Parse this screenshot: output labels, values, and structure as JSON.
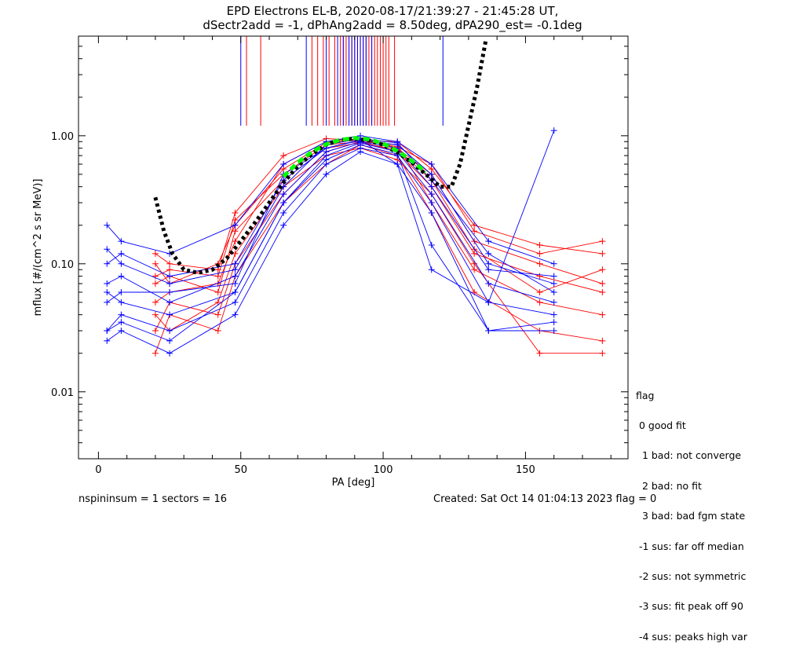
{
  "chart_data": {
    "type": "line",
    "title_line1": "EPD Electrons EL-B, 2020-08-17/21:39:27 - 21:45:28 UT,",
    "title_line2": "dSectr2add = -1, dPhAng2add = 8.50deg, dPA290_est=  -0.1deg",
    "xlabel": "PA [deg]",
    "ylabel": "mflux [#/(cm^2 s sr MeV)]",
    "xlim": [
      -7,
      186
    ],
    "ylim": [
      0.003,
      6.0
    ],
    "yscale": "log",
    "x_ticks": [
      0,
      50,
      100,
      150
    ],
    "x_tick_labels": [
      "0",
      "50",
      "100",
      "150"
    ],
    "y_ticks": [
      0.01,
      0.1,
      1.0
    ],
    "y_tick_labels": [
      "0.01",
      "0.10",
      "1.00"
    ],
    "series": [
      {
        "color": "#ff0000",
        "x": [
          20,
          25,
          42,
          48,
          65,
          80,
          92,
          105,
          117,
          132,
          155,
          177
        ],
        "y": [
          0.08,
          0.09,
          0.08,
          0.22,
          0.5,
          0.85,
          0.9,
          0.75,
          0.4,
          0.12,
          0.08,
          0.06
        ]
      },
      {
        "color": "#ff0000",
        "x": [
          20,
          25,
          42,
          48,
          65,
          80,
          92,
          105,
          117,
          132,
          155,
          177
        ],
        "y": [
          0.05,
          0.06,
          0.07,
          0.15,
          0.6,
          0.9,
          0.95,
          0.8,
          0.5,
          0.15,
          0.1,
          0.07
        ]
      },
      {
        "color": "#ff0000",
        "x": [
          20,
          25,
          42,
          48,
          65,
          80,
          92,
          105,
          117,
          132,
          155,
          177
        ],
        "y": [
          0.03,
          0.05,
          0.04,
          0.1,
          0.35,
          0.75,
          0.9,
          0.85,
          0.3,
          0.09,
          0.05,
          0.04
        ]
      },
      {
        "color": "#ff0000",
        "x": [
          20,
          25,
          42,
          48,
          65,
          80,
          92,
          105,
          117,
          132,
          155,
          177
        ],
        "y": [
          0.12,
          0.1,
          0.09,
          0.25,
          0.7,
          0.95,
          0.92,
          0.9,
          0.55,
          0.2,
          0.14,
          0.12
        ]
      },
      {
        "color": "#ff0000",
        "x": [
          20,
          25,
          42,
          48,
          65,
          80,
          92,
          105,
          117,
          132,
          155,
          177
        ],
        "y": [
          0.02,
          0.04,
          0.03,
          0.08,
          0.3,
          0.6,
          0.85,
          0.7,
          0.25,
          0.06,
          0.03,
          0.025
        ]
      },
      {
        "color": "#ff0000",
        "x": [
          20,
          25,
          42,
          48,
          65,
          80,
          92,
          105,
          117,
          132,
          155,
          177
        ],
        "y": [
          0.07,
          0.08,
          0.06,
          0.18,
          0.45,
          0.8,
          0.88,
          0.78,
          0.45,
          0.13,
          0.06,
          0.09
        ]
      },
      {
        "color": "#ff0000",
        "x": [
          20,
          25,
          42,
          48,
          65,
          80,
          92,
          105,
          117,
          132,
          155,
          177
        ],
        "y": [
          0.04,
          0.03,
          0.05,
          0.12,
          0.4,
          0.7,
          0.8,
          0.65,
          0.35,
          0.1,
          0.02,
          0.02
        ]
      },
      {
        "color": "#ff0000",
        "x": [
          20,
          25,
          42,
          48,
          65,
          80,
          92,
          105,
          117,
          132,
          155,
          177
        ],
        "y": [
          0.1,
          0.07,
          0.1,
          0.2,
          0.55,
          0.88,
          0.93,
          0.82,
          0.6,
          0.18,
          0.12,
          0.15
        ]
      },
      {
        "color": "#0000ff",
        "x": [
          3,
          8,
          25,
          48,
          65,
          80,
          92,
          105,
          117,
          137,
          160
        ],
        "y": [
          0.1,
          0.12,
          0.08,
          0.1,
          0.45,
          0.8,
          0.92,
          0.85,
          0.5,
          0.1,
          0.07
        ]
      },
      {
        "color": "#0000ff",
        "x": [
          3,
          8,
          25,
          48,
          65,
          80,
          92,
          105,
          117,
          137,
          160
        ],
        "y": [
          0.06,
          0.05,
          0.04,
          0.06,
          0.3,
          0.7,
          0.88,
          0.75,
          0.35,
          0.07,
          0.05
        ]
      },
      {
        "color": "#0000ff",
        "x": [
          3,
          8,
          25,
          48,
          65,
          80,
          92,
          105,
          117,
          137,
          160
        ],
        "y": [
          0.2,
          0.15,
          0.12,
          0.2,
          0.6,
          0.9,
          1.0,
          0.9,
          0.6,
          0.15,
          0.1
        ]
      },
      {
        "color": "#0000ff",
        "x": [
          3,
          8,
          25,
          48,
          65,
          80,
          92,
          105,
          117,
          137,
          160
        ],
        "y": [
          0.03,
          0.04,
          0.03,
          0.05,
          0.25,
          0.6,
          0.8,
          0.7,
          0.3,
          0.05,
          0.04
        ]
      },
      {
        "color": "#0000ff",
        "x": [
          3,
          8,
          25,
          48,
          65,
          80,
          92,
          105,
          117,
          137,
          160
        ],
        "y": [
          0.025,
          0.03,
          0.02,
          0.04,
          0.2,
          0.5,
          0.75,
          0.6,
          0.25,
          0.03,
          0.03
        ]
      },
      {
        "color": "#0000ff",
        "x": [
          3,
          8,
          25,
          48,
          65,
          80,
          92,
          105,
          117,
          137,
          160
        ],
        "y": [
          0.13,
          0.1,
          0.07,
          0.09,
          0.4,
          0.85,
          0.95,
          0.88,
          0.45,
          0.12,
          0.06
        ]
      },
      {
        "color": "#0000ff",
        "x": [
          3,
          8,
          25,
          48,
          65,
          80,
          92,
          105,
          117,
          137,
          160
        ],
        "y": [
          0.07,
          0.08,
          0.05,
          0.08,
          0.35,
          0.75,
          0.9,
          0.8,
          0.4,
          0.09,
          0.08
        ]
      },
      {
        "color": "#0000ff",
        "x": [
          3,
          8,
          25,
          48,
          65,
          80,
          92,
          105,
          117,
          137,
          160
        ],
        "y": [
          0.05,
          0.06,
          0.06,
          0.07,
          0.5,
          0.8,
          0.93,
          0.6,
          0.09,
          0.05,
          1.1
        ]
      },
      {
        "color": "#0000ff",
        "x": [
          3,
          8,
          25,
          48,
          65,
          80,
          92,
          105,
          117,
          137,
          160
        ],
        "y": [
          0.03,
          0.035,
          0.025,
          0.06,
          0.3,
          0.65,
          0.85,
          0.72,
          0.14,
          0.03,
          0.035
        ]
      }
    ],
    "fit_curves": [
      {
        "color": "#000000",
        "style": "dotted",
        "x": [
          20,
          23,
          26,
          30,
          35,
          40,
          45,
          50,
          55,
          60,
          65,
          70,
          75,
          80,
          85,
          90,
          95,
          100,
          105,
          110,
          115,
          120,
          124,
          127,
          130,
          133,
          136
        ],
        "y": [
          0.33,
          0.18,
          0.12,
          0.09,
          0.085,
          0.09,
          0.11,
          0.15,
          0.21,
          0.3,
          0.43,
          0.58,
          0.72,
          0.85,
          0.93,
          0.95,
          0.92,
          0.85,
          0.74,
          0.62,
          0.5,
          0.4,
          0.4,
          0.6,
          1.2,
          2.4,
          5.5
        ]
      },
      {
        "color": "#00ff00",
        "style": "dashed",
        "x": [
          65,
          70,
          75,
          80,
          85,
          90,
          95,
          100,
          105,
          110,
          115
        ],
        "y": [
          0.48,
          0.62,
          0.75,
          0.86,
          0.93,
          0.96,
          0.94,
          0.87,
          0.76,
          0.64,
          0.52
        ]
      }
    ],
    "ticks_red_x": [
      52,
      57,
      75,
      77,
      79,
      81,
      83,
      85,
      86,
      87,
      88,
      89,
      90,
      91,
      92,
      93,
      94,
      95,
      96,
      97,
      98,
      99,
      100,
      101,
      102,
      104
    ],
    "ticks_blue_x": [
      50,
      73,
      80,
      84,
      86,
      88,
      89,
      90,
      91,
      92,
      93,
      94,
      96,
      121
    ]
  },
  "legend": {
    "title": "flag",
    "entries": [
      " 0 good fit",
      "  1 bad: not converge",
      "  2 bad: no fit",
      "  3 bad: bad fgm state",
      " -1 sus: far off median",
      " -2 sus: not symmetric",
      " -3 sus: fit peak off 90",
      " -4 sus: peaks high var"
    ]
  },
  "footer": {
    "left": "nspininsum =  1  sectors = 16",
    "right": "Created: Sat Oct 14 01:04:13 2023   flag = 0"
  }
}
